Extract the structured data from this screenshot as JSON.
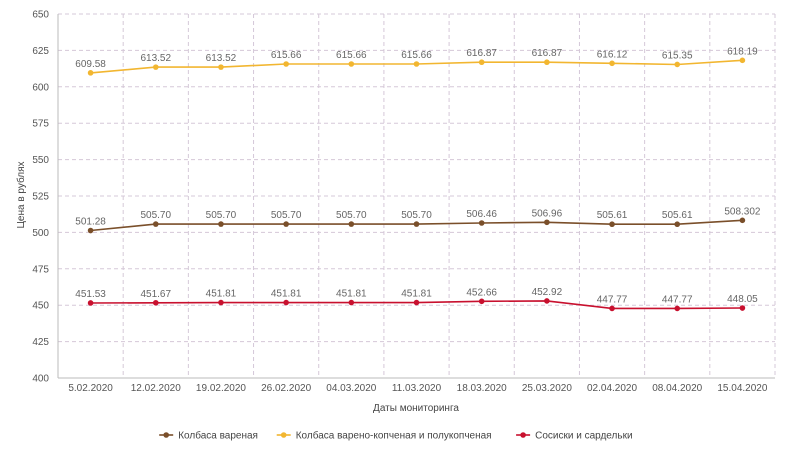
{
  "chart_data": {
    "type": "line",
    "xlabel": "Даты мониторинга",
    "ylabel": "Цена в рублях",
    "ylim": [
      400,
      650
    ],
    "yticks": [
      400,
      425,
      450,
      475,
      500,
      525,
      550,
      575,
      600,
      625,
      650
    ],
    "categories": [
      "5.02.2020",
      "12.02.2020",
      "19.02.2020",
      "26.02.2020",
      "04.03.2020",
      "11.03.2020",
      "18.03.2020",
      "25.03.2020",
      "02.04.2020",
      "08.04.2020",
      "15.04.2020"
    ],
    "grid": true,
    "legend_position": "bottom",
    "series": [
      {
        "name": "Колбаса вареная",
        "color": "#7a4f2a",
        "values": [
          501.28,
          505.7,
          505.7,
          505.7,
          505.7,
          505.7,
          506.46,
          506.96,
          505.61,
          505.61,
          508.302
        ],
        "labels": [
          "501.28",
          "505.70",
          "505.70",
          "505.70",
          "505.70",
          "505.70",
          "506.46",
          "506.96",
          "505.61",
          "505.61",
          "508.302"
        ]
      },
      {
        "name": "Колбаса варено-копченая и полукопченая",
        "color": "#f2b630",
        "values": [
          609.58,
          613.52,
          613.52,
          615.66,
          615.66,
          615.66,
          616.87,
          616.87,
          616.12,
          615.35,
          618.19
        ],
        "labels": [
          "609.58",
          "613.52",
          "613.52",
          "615.66",
          "615.66",
          "615.66",
          "616.87",
          "616.87",
          "616.12",
          "615.35",
          "618.19"
        ]
      },
      {
        "name": "Сосиски и сардельки",
        "color": "#c8102e",
        "values": [
          451.53,
          451.67,
          451.81,
          451.81,
          451.81,
          451.81,
          452.66,
          452.92,
          447.77,
          447.77,
          448.05
        ],
        "labels": [
          "451.53",
          "451.67",
          "451.81",
          "451.81",
          "451.81",
          "451.81",
          "452.66",
          "452.92",
          "447.77",
          "447.77",
          "448.05"
        ]
      }
    ]
  }
}
